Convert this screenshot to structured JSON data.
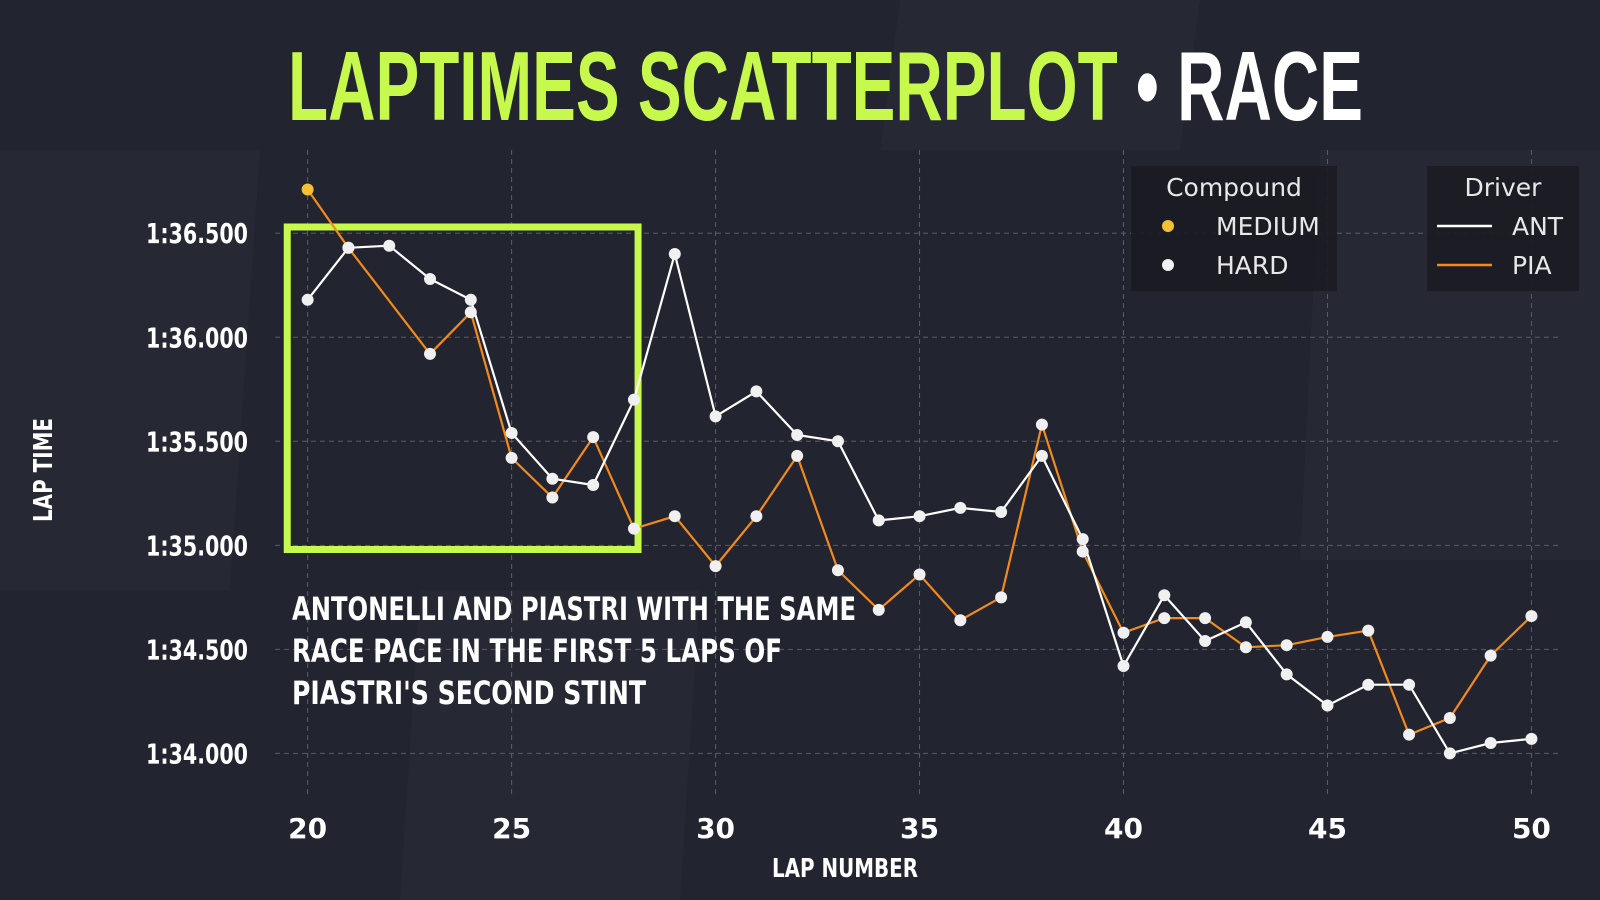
{
  "chart_data": {
    "type": "line",
    "title_primary": "LAPTIMES SCATTERPLOT",
    "title_separator": "•",
    "title_secondary": "RACE",
    "xlabel": "LAP NUMBER",
    "ylabel": "LAP TIME",
    "xlim": [
      19.2,
      50.7
    ],
    "ylim_seconds": [
      93.8,
      96.9
    ],
    "x_ticks": [
      20,
      25,
      30,
      35,
      40,
      45,
      50
    ],
    "y_ticks": [
      {
        "value": 94.0,
        "label": "1:34.000"
      },
      {
        "value": 94.5,
        "label": "1:34.500"
      },
      {
        "value": 95.0,
        "label": "1:35.000"
      },
      {
        "value": 95.5,
        "label": "1:35.500"
      },
      {
        "value": 96.0,
        "label": "1:36.000"
      },
      {
        "value": 96.5,
        "label": "1:36.500"
      }
    ],
    "grid": true,
    "compound_colors": {
      "MEDIUM": "#f5c033",
      "HARD": "#f0f0f0"
    },
    "series": [
      {
        "name": "ANT",
        "color": "#ffffff",
        "points": [
          {
            "lap": 20,
            "time": 96.18,
            "compound": "HARD"
          },
          {
            "lap": 21,
            "time": 96.43,
            "compound": "HARD"
          },
          {
            "lap": 22,
            "time": 96.44,
            "compound": "HARD"
          },
          {
            "lap": 23,
            "time": 96.28,
            "compound": "HARD"
          },
          {
            "lap": 24,
            "time": 96.18,
            "compound": "HARD"
          },
          {
            "lap": 25,
            "time": 95.54,
            "compound": "HARD"
          },
          {
            "lap": 26,
            "time": 95.32,
            "compound": "HARD"
          },
          {
            "lap": 27,
            "time": 95.29,
            "compound": "HARD"
          },
          {
            "lap": 28,
            "time": 95.7,
            "compound": "HARD"
          },
          {
            "lap": 29,
            "time": 96.4,
            "compound": "HARD"
          },
          {
            "lap": 30,
            "time": 95.62,
            "compound": "HARD"
          },
          {
            "lap": 31,
            "time": 95.74,
            "compound": "HARD"
          },
          {
            "lap": 32,
            "time": 95.53,
            "compound": "HARD"
          },
          {
            "lap": 33,
            "time": 95.5,
            "compound": "HARD"
          },
          {
            "lap": 34,
            "time": 95.12,
            "compound": "HARD"
          },
          {
            "lap": 35,
            "time": 95.14,
            "compound": "HARD"
          },
          {
            "lap": 36,
            "time": 95.18,
            "compound": "HARD"
          },
          {
            "lap": 37,
            "time": 95.16,
            "compound": "HARD"
          },
          {
            "lap": 38,
            "time": 95.43,
            "compound": "HARD"
          },
          {
            "lap": 39,
            "time": 95.03,
            "compound": "HARD"
          },
          {
            "lap": 40,
            "time": 94.42,
            "compound": "HARD"
          },
          {
            "lap": 41,
            "time": 94.76,
            "compound": "HARD"
          },
          {
            "lap": 42,
            "time": 94.54,
            "compound": "HARD"
          },
          {
            "lap": 43,
            "time": 94.63,
            "compound": "HARD"
          },
          {
            "lap": 44,
            "time": 94.38,
            "compound": "HARD"
          },
          {
            "lap": 45,
            "time": 94.23,
            "compound": "HARD"
          },
          {
            "lap": 46,
            "time": 94.33,
            "compound": "HARD"
          },
          {
            "lap": 47,
            "time": 94.33,
            "compound": "HARD"
          },
          {
            "lap": 48,
            "time": 94.0,
            "compound": "HARD"
          },
          {
            "lap": 49,
            "time": 94.05,
            "compound": "HARD"
          },
          {
            "lap": 50,
            "time": 94.07,
            "compound": "HARD"
          }
        ]
      },
      {
        "name": "PIA",
        "color": "#f28a1c",
        "points": [
          {
            "lap": 20,
            "time": 96.71,
            "compound": "MEDIUM"
          },
          {
            "lap": 21,
            "time": 96.43,
            "compound": "HARD"
          },
          {
            "lap": 23,
            "time": 95.92,
            "compound": "HARD"
          },
          {
            "lap": 24,
            "time": 96.12,
            "compound": "HARD"
          },
          {
            "lap": 25,
            "time": 95.42,
            "compound": "HARD"
          },
          {
            "lap": 26,
            "time": 95.23,
            "compound": "HARD"
          },
          {
            "lap": 27,
            "time": 95.52,
            "compound": "HARD"
          },
          {
            "lap": 28,
            "time": 95.08,
            "compound": "HARD"
          },
          {
            "lap": 29,
            "time": 95.14,
            "compound": "HARD"
          },
          {
            "lap": 30,
            "time": 94.9,
            "compound": "HARD"
          },
          {
            "lap": 31,
            "time": 95.14,
            "compound": "HARD"
          },
          {
            "lap": 32,
            "time": 95.43,
            "compound": "HARD"
          },
          {
            "lap": 33,
            "time": 94.88,
            "compound": "HARD"
          },
          {
            "lap": 34,
            "time": 94.69,
            "compound": "HARD"
          },
          {
            "lap": 35,
            "time": 94.86,
            "compound": "HARD"
          },
          {
            "lap": 36,
            "time": 94.64,
            "compound": "HARD"
          },
          {
            "lap": 37,
            "time": 94.75,
            "compound": "HARD"
          },
          {
            "lap": 38,
            "time": 95.58,
            "compound": "HARD"
          },
          {
            "lap": 39,
            "time": 94.97,
            "compound": "HARD"
          },
          {
            "lap": 40,
            "time": 94.58,
            "compound": "HARD"
          },
          {
            "lap": 41,
            "time": 94.65,
            "compound": "HARD"
          },
          {
            "lap": 42,
            "time": 94.65,
            "compound": "HARD"
          },
          {
            "lap": 43,
            "time": 94.51,
            "compound": "HARD"
          },
          {
            "lap": 44,
            "time": 94.52,
            "compound": "HARD"
          },
          {
            "lap": 45,
            "time": 94.56,
            "compound": "HARD"
          },
          {
            "lap": 46,
            "time": 94.59,
            "compound": "HARD"
          },
          {
            "lap": 47,
            "time": 94.09,
            "compound": "HARD"
          },
          {
            "lap": 48,
            "time": 94.17,
            "compound": "HARD"
          },
          {
            "lap": 49,
            "time": 94.47,
            "compound": "HARD"
          },
          {
            "lap": 50,
            "time": 94.66,
            "compound": "HARD"
          }
        ]
      }
    ],
    "legend_compound": {
      "title": "Compound",
      "items": [
        {
          "label": "MEDIUM",
          "color": "#f5c033"
        },
        {
          "label": "HARD",
          "color": "#f0f0f0"
        }
      ]
    },
    "legend_driver": {
      "title": "Driver",
      "items": [
        {
          "label": "ANT",
          "color": "#ffffff"
        },
        {
          "label": "PIA",
          "color": "#f28a1c"
        }
      ]
    },
    "highlight": {
      "x_range": [
        19.5,
        28.1
      ],
      "y_range_seconds": [
        94.98,
        96.53
      ],
      "color": "#c6f94c"
    },
    "annotation_lines": [
      "ANTONELLI AND PIASTRI WITH THE SAME",
      "RACE PACE IN THE FIRST 5 LAPS OF",
      "PIASTRI'S SECOND STINT"
    ]
  }
}
